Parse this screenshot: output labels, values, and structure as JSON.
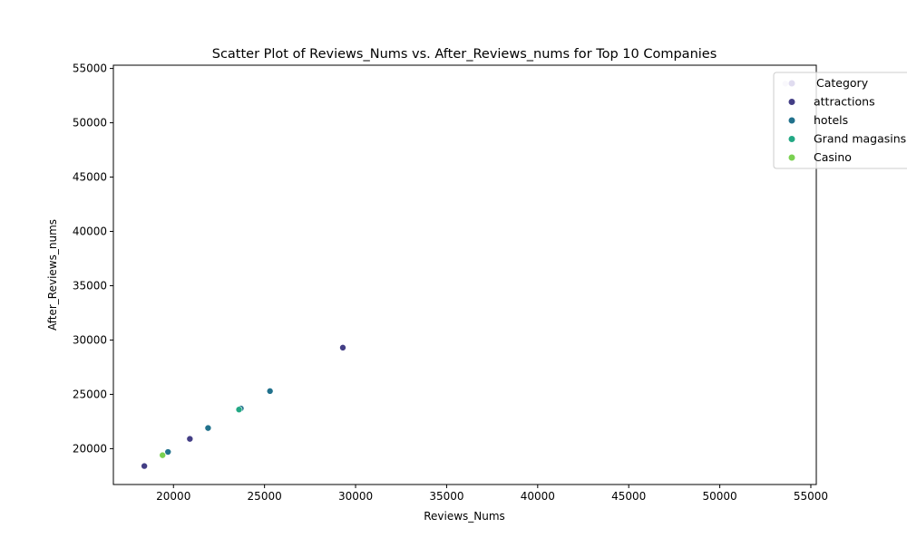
{
  "chart_data": {
    "type": "scatter",
    "title": "Scatter Plot of Reviews_Nums vs. After_Reviews_nums for Top 10 Companies",
    "xlabel": "Reviews_Nums",
    "ylabel": "After_Reviews_nums",
    "xlim": [
      16700,
      55300
    ],
    "ylim": [
      16700,
      55300
    ],
    "xticks": [
      20000,
      25000,
      30000,
      35000,
      40000,
      45000,
      50000,
      55000
    ],
    "yticks": [
      20000,
      25000,
      30000,
      35000,
      40000,
      45000,
      50000,
      55000
    ],
    "grid": false,
    "legend": {
      "title": "Category",
      "position": "top-right",
      "entries": [
        {
          "label": "Category",
          "color": "#e0dcf0"
        },
        {
          "label": "attractions",
          "color": "#433e85"
        },
        {
          "label": "hotels",
          "color": "#21718c"
        },
        {
          "label": "Grand magasins",
          "color": "#22a884"
        },
        {
          "label": "Casino",
          "color": "#7ad151"
        }
      ]
    },
    "series": [
      {
        "name": "Category",
        "color": "#e0dcf0",
        "points": [
          [
            53600,
            53600
          ]
        ]
      },
      {
        "name": "attractions",
        "color": "#433e85",
        "points": [
          [
            29300,
            29300
          ],
          [
            20900,
            20900
          ],
          [
            18400,
            18400
          ]
        ]
      },
      {
        "name": "hotels",
        "color": "#21718c",
        "points": [
          [
            25300,
            25300
          ],
          [
            23700,
            23700
          ],
          [
            21900,
            21900
          ],
          [
            19700,
            19700
          ]
        ]
      },
      {
        "name": "Grand magasins",
        "color": "#22a884",
        "points": [
          [
            23600,
            23600
          ]
        ]
      },
      {
        "name": "Casino",
        "color": "#7ad151",
        "points": [
          [
            19400,
            19400
          ]
        ]
      }
    ]
  }
}
